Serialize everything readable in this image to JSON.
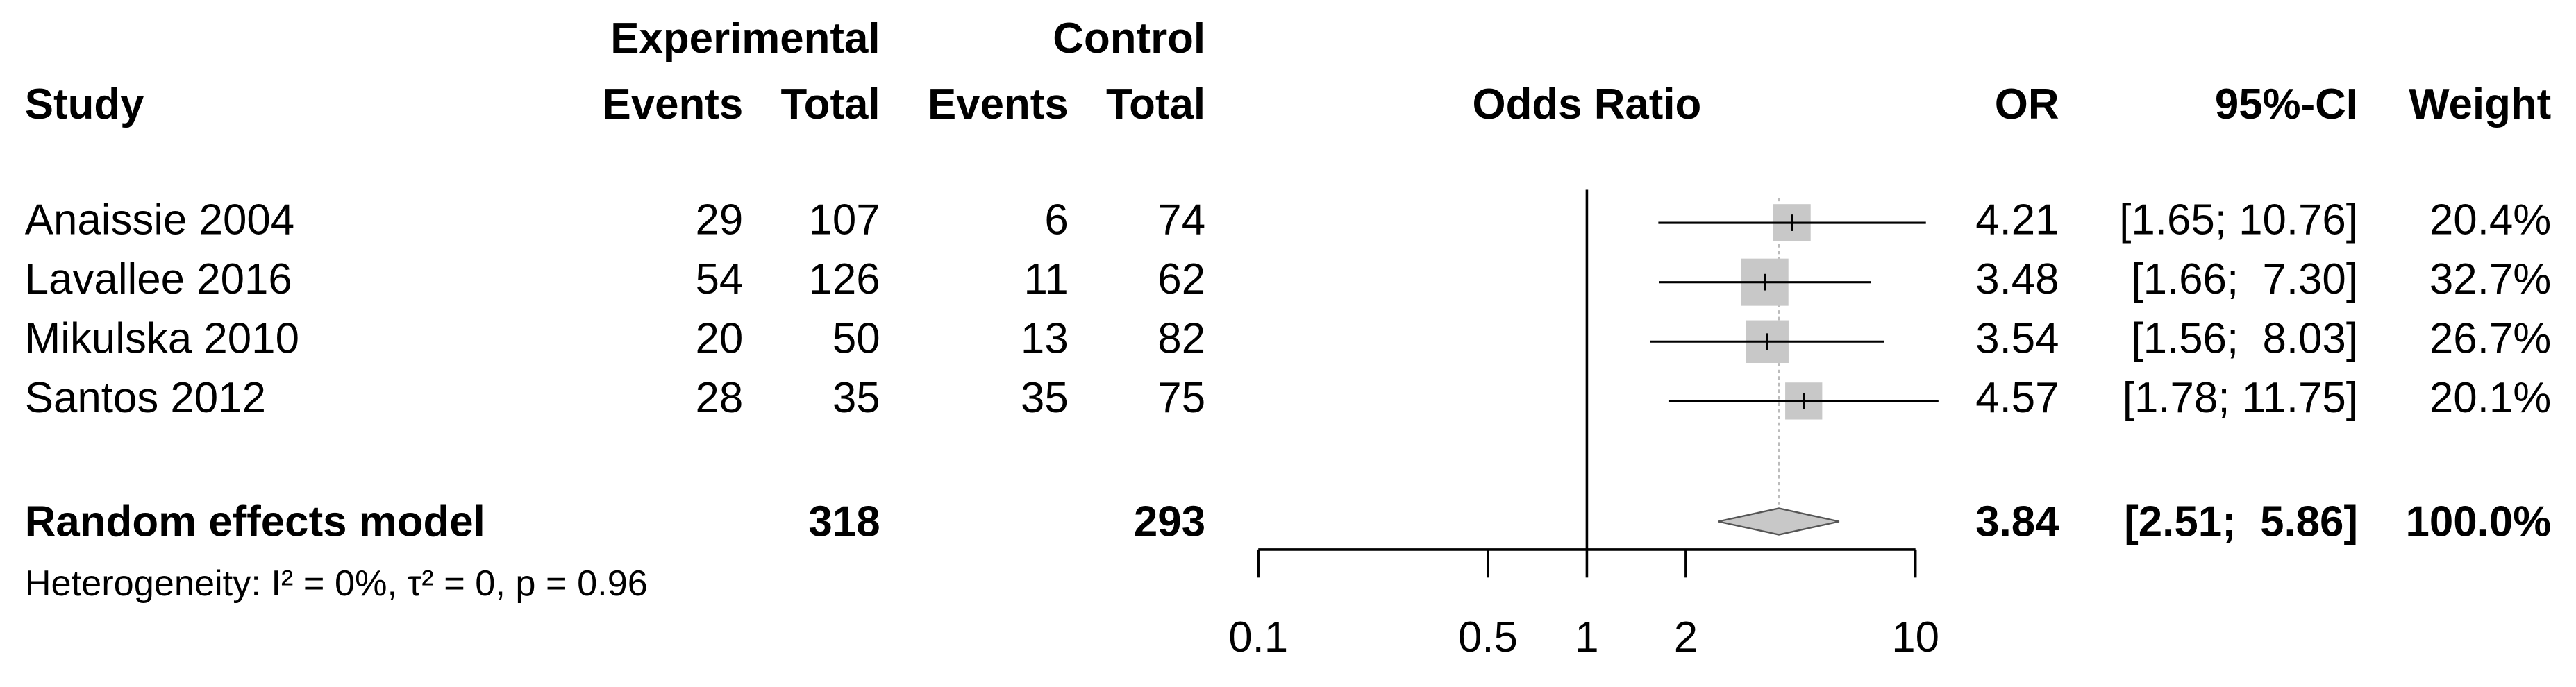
{
  "chart_data": {
    "type": "forest",
    "group_headers": [
      "Experimental",
      "Control"
    ],
    "column_headers": [
      "Study",
      "Events",
      "Total",
      "Events",
      "Total",
      "Odds Ratio",
      "OR",
      "95%-CI",
      "Weight"
    ],
    "studies": [
      {
        "name": "Anaissie 2004",
        "exp_events": 29,
        "exp_total": 107,
        "ctrl_events": 6,
        "ctrl_total": 74,
        "or": 4.21,
        "ci_lower": 1.65,
        "ci_upper": 10.76,
        "ci_label": "[1.65; 10.76]",
        "weight": 20.4,
        "weight_label": "20.4%"
      },
      {
        "name": "Lavallee 2016",
        "exp_events": 54,
        "exp_total": 126,
        "ctrl_events": 11,
        "ctrl_total": 62,
        "or": 3.48,
        "ci_lower": 1.66,
        "ci_upper": 7.3,
        "ci_label": "[1.66;  7.30]",
        "weight": 32.7,
        "weight_label": "32.7%"
      },
      {
        "name": "Mikulska 2010",
        "exp_events": 20,
        "exp_total": 50,
        "ctrl_events": 13,
        "ctrl_total": 82,
        "or": 3.54,
        "ci_lower": 1.56,
        "ci_upper": 8.03,
        "ci_label": "[1.56;  8.03]",
        "weight": 26.7,
        "weight_label": "26.7%"
      },
      {
        "name": "Santos 2012",
        "exp_events": 28,
        "exp_total": 35,
        "ctrl_events": 35,
        "ctrl_total": 75,
        "or": 4.57,
        "ci_lower": 1.78,
        "ci_upper": 11.75,
        "ci_label": "[1.78; 11.75]",
        "weight": 20.1,
        "weight_label": "20.1%"
      }
    ],
    "pooled": {
      "name": "Random effects model",
      "exp_total": 318,
      "ctrl_total": 293,
      "or": 3.84,
      "ci_lower": 2.51,
      "ci_upper": 5.86,
      "ci_label": "[2.51;  5.86]",
      "weight": 100.0,
      "weight_label": "100.0%"
    },
    "heterogeneity": "Heterogeneity: I² = 0%, τ² = 0, p = 0.96",
    "xscale": "log",
    "xlim": [
      0.1,
      10
    ],
    "xticks": [
      0.1,
      0.5,
      1,
      2,
      10
    ],
    "null_line": 1,
    "box_color": "#c8c8c8",
    "diamond_color": "#c8c8c8",
    "line_color": "#000000"
  }
}
